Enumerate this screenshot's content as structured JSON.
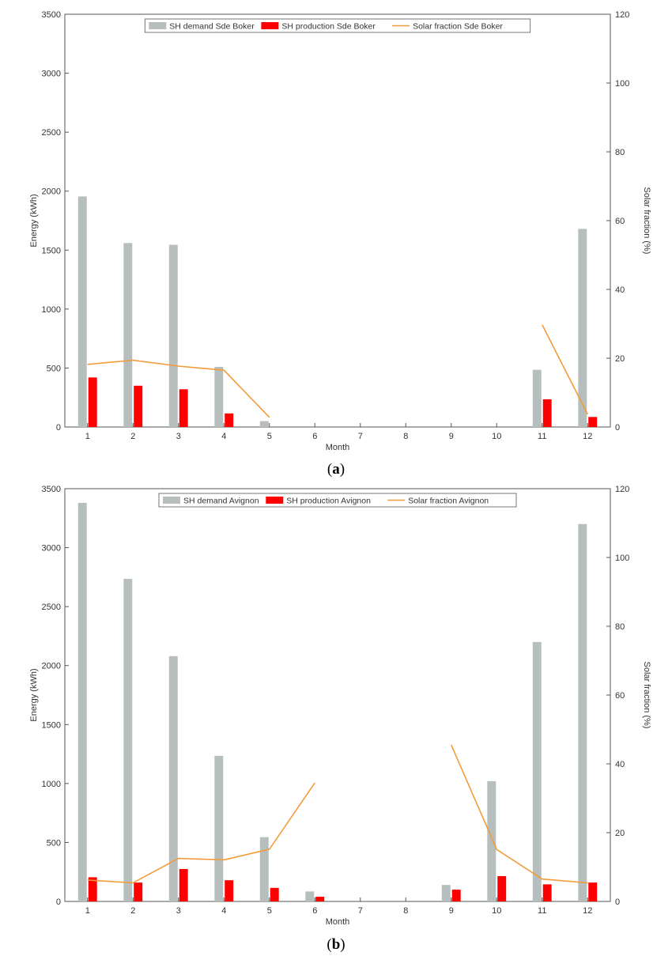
{
  "captions": {
    "a_open": "(",
    "a_letter": "a",
    "a_close": ")",
    "b_open": "(",
    "b_letter": "b",
    "b_close": ")"
  },
  "colors": {
    "demand": "#b6bebe",
    "production": "#ff0000",
    "fraction": "#f39b3a",
    "axis": "#555555"
  },
  "chart_data": [
    {
      "type": "bar",
      "id": "a",
      "categories": [
        "1",
        "2",
        "3",
        "4",
        "5",
        "6",
        "7",
        "8",
        "9",
        "10",
        "11",
        "12"
      ],
      "xlabel": "Month",
      "ylabel": "Energy (kWh)",
      "y2label": "Solar fraction (%)",
      "ylim": [
        0,
        3500
      ],
      "y2lim": [
        0,
        120
      ],
      "yticks": [
        "0",
        "500",
        "1000",
        "1500",
        "2000",
        "2500",
        "3000",
        "3500"
      ],
      "y2ticks": [
        "0",
        "20",
        "40",
        "60",
        "80",
        "100",
        "120"
      ],
      "legend_position": "top-center",
      "series": [
        {
          "name": "SH demand Sde Boker",
          "kind": "bar",
          "values": [
            1955,
            1560,
            1545,
            510,
            50,
            0,
            0,
            0,
            0,
            0,
            485,
            1680
          ]
        },
        {
          "name": "SH production Sde Boker",
          "kind": "bar",
          "values": [
            420,
            350,
            320,
            115,
            0,
            0,
            0,
            0,
            0,
            0,
            235,
            85
          ]
        },
        {
          "name": "Solar fraction Sde Boker",
          "kind": "line",
          "axis": "right",
          "values": [
            18.2,
            19.4,
            17.7,
            16.5,
            2.8,
            null,
            null,
            null,
            null,
            null,
            29.7,
            3.7
          ]
        }
      ]
    },
    {
      "type": "bar",
      "id": "b",
      "categories": [
        "1",
        "2",
        "3",
        "4",
        "5",
        "6",
        "7",
        "8",
        "9",
        "10",
        "11",
        "12"
      ],
      "xlabel": "Month",
      "ylabel": "Energy (kWh)",
      "y2label": "Solar fraction (%)",
      "ylim": [
        0,
        3500
      ],
      "y2lim": [
        0,
        120
      ],
      "yticks": [
        "0",
        "500",
        "1000",
        "1500",
        "2000",
        "2500",
        "3000",
        "3500"
      ],
      "y2ticks": [
        "0",
        "20",
        "40",
        "60",
        "80",
        "100",
        "120"
      ],
      "legend_position": "top-center",
      "series": [
        {
          "name": "SH demand Avignon",
          "kind": "bar",
          "values": [
            3380,
            2735,
            2080,
            1235,
            545,
            85,
            0,
            0,
            140,
            1020,
            2200,
            3200
          ]
        },
        {
          "name": "SH production Avignon",
          "kind": "bar",
          "values": [
            205,
            160,
            275,
            180,
            115,
            40,
            0,
            0,
            100,
            215,
            145,
            160
          ]
        },
        {
          "name": "Solar fraction Avignon",
          "kind": "line",
          "axis": "right",
          "values": [
            6.2,
            5.4,
            12.5,
            12.1,
            15.2,
            34.5,
            null,
            null,
            45.5,
            15.1,
            6.5,
            5.4
          ]
        }
      ]
    }
  ]
}
